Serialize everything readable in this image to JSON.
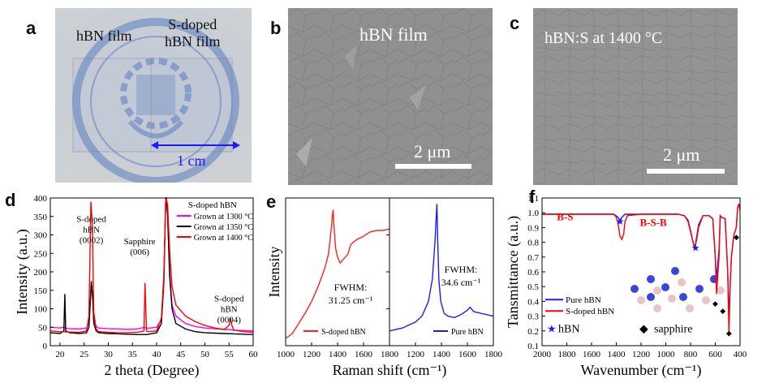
{
  "panels": {
    "a": {
      "letter": "a",
      "label_hbn": "hBN film",
      "label_sdoped_1": "S-doped",
      "label_sdoped_2": "hBN film",
      "scale": "1 cm"
    },
    "b": {
      "letter": "b",
      "title": "hBN film",
      "scale": "2 μm"
    },
    "c": {
      "letter": "c",
      "title": "hBN:S at 1400 °C",
      "scale": "2 μm"
    },
    "d": {
      "letter": "d"
    },
    "e": {
      "letter": "e"
    },
    "f": {
      "letter": "f"
    }
  },
  "chart_data": [
    {
      "panel": "d",
      "type": "line",
      "xlabel": "2 theta (Degree)",
      "ylabel": "Intensity (a.u.)",
      "xlim": [
        18,
        60
      ],
      "ylim": [
        0,
        400
      ],
      "xticks": [
        20,
        25,
        30,
        35,
        40,
        45,
        50,
        55,
        60
      ],
      "yticks": [
        0,
        50,
        100,
        150,
        200,
        250,
        300,
        350,
        400
      ],
      "legend_title": "S-doped hBN",
      "legend_position": "top-right",
      "annotations": [
        {
          "lines": [
            "S-doped",
            "hBN",
            "(0002)"
          ],
          "x": 26.5,
          "y": 335
        },
        {
          "lines": [
            "Sapphire",
            "(006)"
          ],
          "x": 36.5,
          "y": 275
        },
        {
          "lines": [
            "S-doped",
            "hBN",
            "(0004)"
          ],
          "x": 55,
          "y": 120
        }
      ],
      "series": [
        {
          "name": "Grown at 1300 °C",
          "color": "#ff00ff",
          "x": [
            18,
            20,
            20.8,
            21,
            22,
            24,
            25.5,
            26,
            26.5,
            26.8,
            27,
            27.5,
            28,
            30,
            32,
            34,
            36,
            37.5,
            38,
            40,
            41,
            41.5,
            41.9,
            42,
            42.3,
            42.7,
            43.2,
            44,
            46,
            48,
            50,
            52,
            54,
            55,
            56,
            58,
            60
          ],
          "y": [
            50,
            48,
            50,
            48,
            46,
            45,
            48,
            60,
            170,
            130,
            70,
            52,
            48,
            46,
            45,
            44,
            45,
            50,
            47,
            50,
            70,
            180,
            400,
            400,
            360,
            200,
            110,
            80,
            60,
            52,
            48,
            46,
            44,
            44,
            42,
            41,
            40
          ]
        },
        {
          "name": "Grown at 1350 °C",
          "color": "#000000",
          "x": [
            18,
            20,
            20.8,
            21,
            21.2,
            22,
            24,
            25.5,
            26,
            26.5,
            26.8,
            27,
            27.5,
            28,
            30,
            32,
            34,
            36,
            38,
            40,
            41,
            41.5,
            41.9,
            42,
            42.3,
            42.7,
            43.2,
            44,
            46,
            48,
            50,
            52,
            54,
            56,
            58,
            60
          ],
          "y": [
            35,
            33,
            40,
            140,
            40,
            35,
            33,
            35,
            50,
            175,
            120,
            60,
            40,
            35,
            33,
            32,
            31,
            30,
            30,
            35,
            60,
            170,
            400,
            400,
            350,
            190,
            100,
            60,
            45,
            38,
            35,
            34,
            33,
            32,
            31,
            30
          ]
        },
        {
          "name": "Grown at 1400 °C",
          "color": "#ff0000",
          "x": [
            18,
            20,
            22,
            24,
            25.5,
            26,
            26.4,
            26.7,
            27,
            27.5,
            28,
            30,
            32,
            34,
            36,
            37.4,
            37.6,
            37.9,
            38.2,
            40,
            41,
            41.5,
            41.9,
            42,
            42.3,
            42.7,
            43.2,
            44,
            46,
            48,
            50,
            52,
            54,
            55,
            55.3,
            55.6,
            56,
            58,
            60
          ],
          "y": [
            40,
            38,
            37,
            36,
            40,
            80,
            390,
            330,
            90,
            45,
            38,
            36,
            35,
            35,
            36,
            40,
            170,
            40,
            38,
            40,
            75,
            190,
            400,
            400,
            380,
            260,
            160,
            110,
            80,
            65,
            55,
            48,
            44,
            55,
            75,
            55,
            42,
            38,
            36
          ]
        }
      ]
    },
    {
      "panel": "e",
      "type": "line",
      "xlabel": "Raman shift (cm⁻¹)",
      "ylabel": "Intensity",
      "subplots": [
        {
          "xlim": [
            1000,
            1800
          ],
          "xticks": [
            1000,
            1200,
            1400,
            1600,
            1800
          ],
          "legend": "S-doped hBN",
          "annotation_lines": [
            "FWHM:",
            "31.25 cm⁻¹"
          ],
          "series": [
            {
              "name": "S-doped hBN",
              "color": "#ff2020",
              "x": [
                1000,
                1050,
                1100,
                1150,
                1200,
                1250,
                1300,
                1330,
                1350,
                1365,
                1372,
                1385,
                1400,
                1420,
                1440,
                1460,
                1480,
                1500,
                1520,
                1550,
                1600,
                1650,
                1700,
                1750,
                1800
              ],
              "y": [
                0.05,
                0.08,
                0.15,
                0.22,
                0.3,
                0.4,
                0.52,
                0.62,
                0.78,
                0.92,
                0.82,
                0.66,
                0.6,
                0.56,
                0.58,
                0.6,
                0.62,
                0.68,
                0.7,
                0.72,
                0.74,
                0.77,
                0.78,
                0.78,
                0.79
              ]
            }
          ]
        },
        {
          "xlim": [
            1000,
            1800
          ],
          "xticks": [
            1200,
            1400,
            1600,
            1800
          ],
          "legend": "Pure hBN",
          "annotation_lines": [
            "FWHM:",
            "34.6 cm⁻¹"
          ],
          "series": [
            {
              "name": "Pure hBN",
              "color": "#1a1aff",
              "x": [
                1000,
                1100,
                1150,
                1200,
                1250,
                1300,
                1330,
                1350,
                1365,
                1372,
                1380,
                1395,
                1420,
                1450,
                1500,
                1550,
                1600,
                1620,
                1650,
                1700,
                1750,
                1800
              ],
              "y": [
                0.1,
                0.12,
                0.14,
                0.16,
                0.2,
                0.3,
                0.45,
                0.7,
                0.96,
                0.7,
                0.45,
                0.3,
                0.22,
                0.2,
                0.19,
                0.21,
                0.24,
                0.26,
                0.23,
                0.22,
                0.21,
                0.2
              ]
            }
          ]
        }
      ]
    },
    {
      "panel": "f",
      "type": "line",
      "xlabel": "Wavenumber (cm⁻¹)",
      "ylabel": "Tansmittance (a.u.)",
      "xlim": [
        2000,
        400
      ],
      "ylim": [
        0.1,
        1.1
      ],
      "xticks": [
        2000,
        1800,
        1600,
        1400,
        1200,
        1000,
        800,
        600,
        400
      ],
      "yticks": [
        0.1,
        0.2,
        0.3,
        0.4,
        0.5,
        0.6,
        0.7,
        0.8,
        0.9,
        1.0,
        1.1
      ],
      "legend": [
        "Pure hBN",
        "S-doped hBN"
      ],
      "legend_position": "bottom-left",
      "annotations": [
        "B-S",
        "B-S-B"
      ],
      "markers_legend": [
        "hBN",
        "sapphire"
      ],
      "series": [
        {
          "name": "Pure hBN",
          "color": "#1a1aff",
          "x": [
            2000,
            1700,
            1500,
            1420,
            1385,
            1370,
            1355,
            1330,
            1200,
            1000,
            900,
            850,
            820,
            800,
            780,
            770,
            760,
            750,
            735,
            700,
            650,
            620,
            600,
            590,
            570,
            560,
            550,
            520,
            500,
            490,
            480,
            470,
            450,
            430,
            420,
            410,
            400
          ],
          "y": [
            0.99,
            0.99,
            0.99,
            0.99,
            0.97,
            0.94,
            0.97,
            0.99,
            0.99,
            0.99,
            0.99,
            0.98,
            0.95,
            0.88,
            0.8,
            0.77,
            0.79,
            0.84,
            0.92,
            0.98,
            0.98,
            0.96,
            0.7,
            0.55,
            0.75,
            0.98,
            0.97,
            0.96,
            0.6,
            0.3,
            0.5,
            0.7,
            0.85,
            0.9,
            1.03,
            1.06,
            1.02
          ]
        },
        {
          "name": "S-doped hBN",
          "color": "#ff0000",
          "x": [
            2000,
            1700,
            1500,
            1420,
            1400,
            1385,
            1370,
            1355,
            1340,
            1330,
            1310,
            1200,
            1000,
            900,
            850,
            820,
            800,
            780,
            770,
            760,
            750,
            735,
            700,
            650,
            620,
            600,
            590,
            570,
            560,
            550,
            520,
            500,
            490,
            480,
            470,
            450,
            430,
            420,
            410,
            400
          ],
          "y": [
            0.99,
            0.99,
            0.99,
            0.99,
            0.97,
            0.92,
            0.84,
            0.82,
            0.86,
            0.94,
            0.98,
            0.99,
            0.99,
            0.99,
            0.98,
            0.94,
            0.87,
            0.8,
            0.76,
            0.78,
            0.82,
            0.9,
            0.98,
            0.98,
            0.96,
            0.7,
            0.45,
            0.7,
            0.98,
            0.97,
            0.96,
            0.6,
            0.18,
            0.5,
            0.7,
            0.85,
            0.9,
            1.03,
            1.06,
            1.02
          ]
        }
      ]
    }
  ]
}
